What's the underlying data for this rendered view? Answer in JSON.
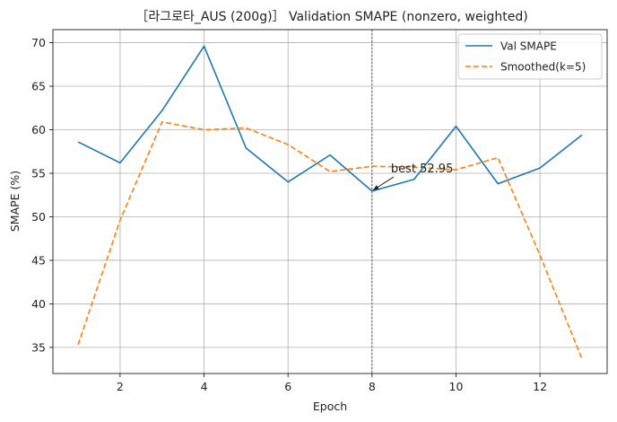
{
  "chart_data": {
    "type": "line",
    "title": "［라그로타_AUS (200g)］ Validation SMAPE (nonzero, weighted)",
    "xlabel": "Epoch",
    "ylabel": "SMAPE (%)",
    "x": [
      1,
      2,
      3,
      4,
      5,
      6,
      7,
      8,
      9,
      10,
      11,
      12,
      13
    ],
    "xlim": [
      0.4,
      13.6
    ],
    "ylim": [
      32.0,
      71.5
    ],
    "xticks": [
      2,
      4,
      6,
      8,
      10,
      12
    ],
    "yticks": [
      35,
      40,
      45,
      50,
      55,
      60,
      65,
      70
    ],
    "grid": true,
    "legend_position": "top-right",
    "series": [
      {
        "name": "Val SMAPE",
        "style": "solid",
        "color": "#1f77b4",
        "values": [
          58.6,
          56.2,
          62.2,
          69.6,
          57.9,
          54.0,
          57.1,
          52.95,
          54.3,
          60.4,
          53.8,
          55.6,
          59.4
        ]
      },
      {
        "name": "Smoothed(k=5)",
        "style": "dashed",
        "color": "#ff7f0e",
        "values": [
          35.3,
          49.6,
          60.9,
          60.0,
          60.2,
          58.3,
          55.2,
          55.8,
          55.7,
          55.4,
          56.8,
          45.6,
          33.7
        ]
      }
    ],
    "best_epoch_line": {
      "x": 8,
      "color": "#808080",
      "style": "dotted"
    },
    "annotation": {
      "text": "best 52.95",
      "x": 8,
      "y": 52.95,
      "text_x": 8.45,
      "text_y": 55.1
    }
  }
}
